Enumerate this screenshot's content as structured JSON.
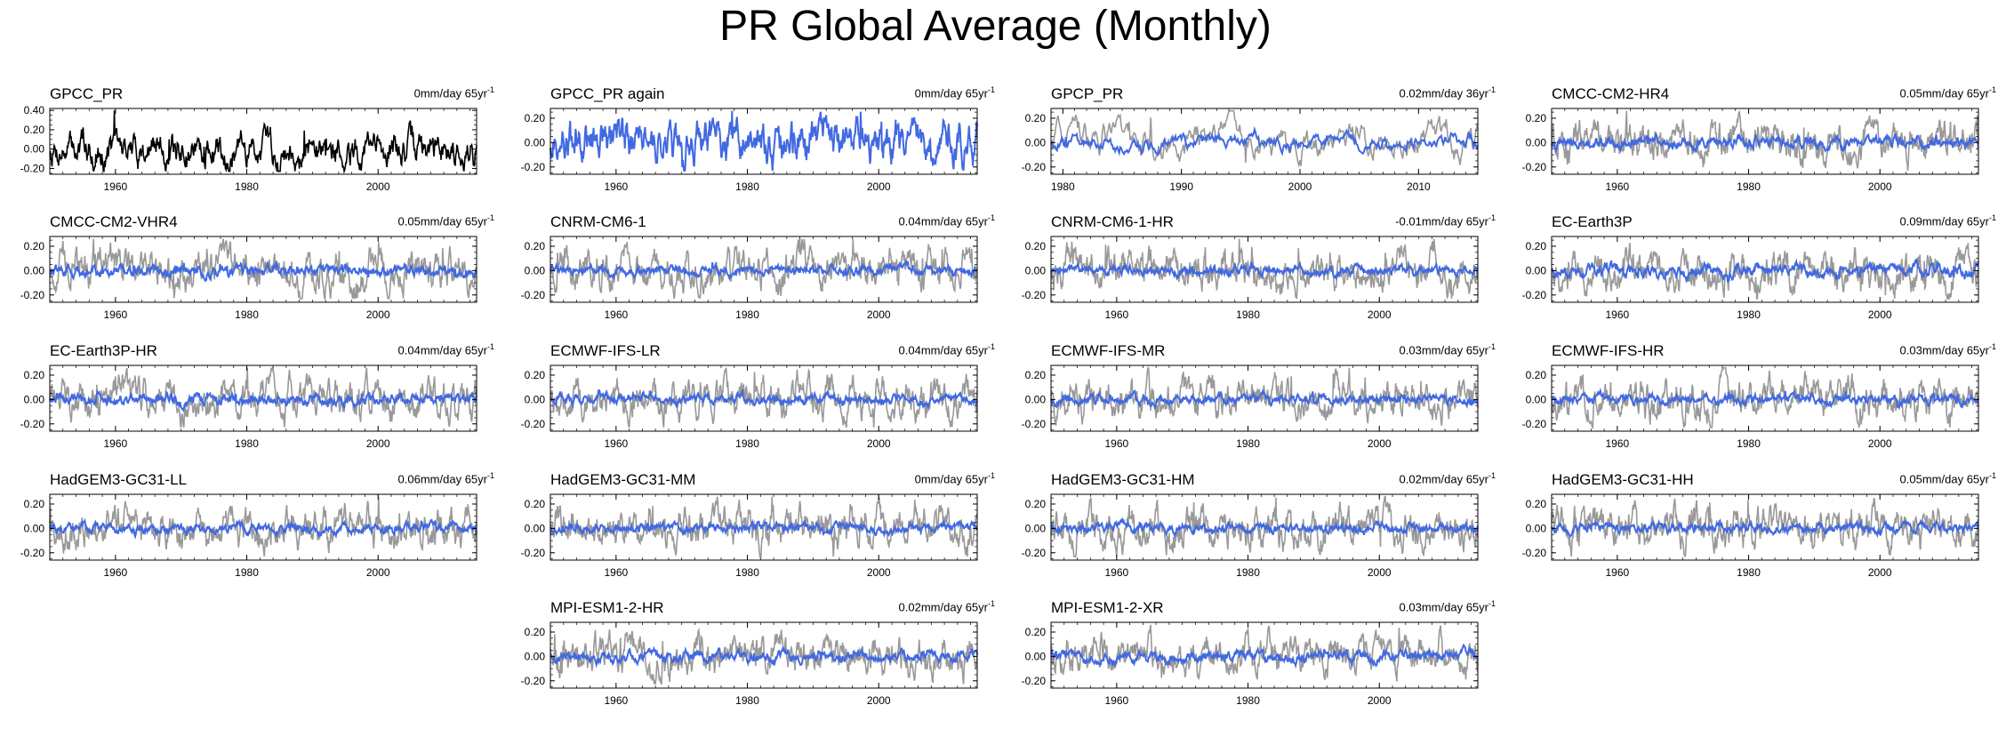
{
  "title": "PR Global Average (Monthly)",
  "colors": {
    "obs": "#000000",
    "model": "#4169e1",
    "reference": "#999999"
  },
  "chart_data": [
    {
      "type": "line",
      "title": "GPCC_PR",
      "trend": "0mm/day 65yr",
      "trend_sup": "-1",
      "x_range": [
        1950,
        2015
      ],
      "xticks": [
        1960,
        1980,
        2000
      ],
      "ylim": [
        -0.26,
        0.42
      ],
      "yticks": [
        "-0.20",
        "0.00",
        "0.20",
        "0.40"
      ],
      "series": [
        {
          "style": "obs",
          "amp": 0.22
        }
      ]
    },
    {
      "type": "line",
      "title": "GPCC_PR again",
      "trend": "0mm/day 65yr",
      "trend_sup": "-1",
      "x_range": [
        1950,
        2015
      ],
      "xticks": [
        1960,
        1980,
        2000
      ],
      "ylim": [
        -0.26,
        0.28
      ],
      "yticks": [
        "-0.20",
        "0.00",
        "0.20"
      ],
      "series": [
        {
          "style": "model",
          "amp": 0.22
        }
      ]
    },
    {
      "type": "line",
      "title": "GPCP_PR",
      "trend": "0.02mm/day 36yr",
      "trend_sup": "-1",
      "x_range": [
        1979,
        2015
      ],
      "xticks": [
        1980,
        1990,
        2000,
        2010
      ],
      "ylim": [
        -0.26,
        0.28
      ],
      "yticks": [
        "-0.20",
        "0.00",
        "0.20"
      ],
      "series": [
        {
          "style": "reference",
          "amp": 0.18
        },
        {
          "style": "model",
          "amp": 0.08
        }
      ]
    },
    {
      "type": "line",
      "title": "CMCC-CM2-HR4",
      "trend": "0.05mm/day 65yr",
      "trend_sup": "-1",
      "x_range": [
        1950,
        2015
      ],
      "xticks": [
        1960,
        1980,
        2000
      ],
      "ylim": [
        -0.26,
        0.28
      ],
      "yticks": [
        "-0.20",
        "0.00",
        "0.20"
      ],
      "series": [
        {
          "style": "reference",
          "amp": 0.2
        },
        {
          "style": "model",
          "amp": 0.06
        }
      ]
    },
    {
      "type": "line",
      "title": "CMCC-CM2-VHR4",
      "trend": "0.05mm/day 65yr",
      "trend_sup": "-1",
      "x_range": [
        1950,
        2015
      ],
      "xticks": [
        1960,
        1980,
        2000
      ],
      "ylim": [
        -0.26,
        0.28
      ],
      "yticks": [
        "-0.20",
        "0.00",
        "0.20"
      ],
      "series": [
        {
          "style": "reference",
          "amp": 0.2
        },
        {
          "style": "model",
          "amp": 0.06
        }
      ]
    },
    {
      "type": "line",
      "title": "CNRM-CM6-1",
      "trend": "0.04mm/day 65yr",
      "trend_sup": "-1",
      "x_range": [
        1950,
        2015
      ],
      "xticks": [
        1960,
        1980,
        2000
      ],
      "ylim": [
        -0.26,
        0.28
      ],
      "yticks": [
        "-0.20",
        "0.00",
        "0.20"
      ],
      "series": [
        {
          "style": "reference",
          "amp": 0.2
        },
        {
          "style": "model",
          "amp": 0.05
        }
      ]
    },
    {
      "type": "line",
      "title": "CNRM-CM6-1-HR",
      "trend": "-0.01mm/day 65yr",
      "trend_sup": "-1",
      "x_range": [
        1950,
        2015
      ],
      "xticks": [
        1960,
        1980,
        2000
      ],
      "ylim": [
        -0.26,
        0.28
      ],
      "yticks": [
        "-0.20",
        "0.00",
        "0.20"
      ],
      "series": [
        {
          "style": "reference",
          "amp": 0.2
        },
        {
          "style": "model",
          "amp": 0.05
        }
      ]
    },
    {
      "type": "line",
      "title": "EC-Earth3P",
      "trend": "0.09mm/day 65yr",
      "trend_sup": "-1",
      "x_range": [
        1950,
        2015
      ],
      "xticks": [
        1960,
        1980,
        2000
      ],
      "ylim": [
        -0.26,
        0.28
      ],
      "yticks": [
        "-0.20",
        "0.00",
        "0.20"
      ],
      "series": [
        {
          "style": "reference",
          "amp": 0.2
        },
        {
          "style": "model",
          "amp": 0.07
        }
      ]
    },
    {
      "type": "line",
      "title": "EC-Earth3P-HR",
      "trend": "0.04mm/day 65yr",
      "trend_sup": "-1",
      "x_range": [
        1950,
        2015
      ],
      "xticks": [
        1960,
        1980,
        2000
      ],
      "ylim": [
        -0.26,
        0.28
      ],
      "yticks": [
        "-0.20",
        "0.00",
        "0.20"
      ],
      "series": [
        {
          "style": "reference",
          "amp": 0.2
        },
        {
          "style": "model",
          "amp": 0.06
        }
      ]
    },
    {
      "type": "line",
      "title": "ECMWF-IFS-LR",
      "trend": "0.04mm/day 65yr",
      "trend_sup": "-1",
      "x_range": [
        1950,
        2015
      ],
      "xticks": [
        1960,
        1980,
        2000
      ],
      "ylim": [
        -0.26,
        0.28
      ],
      "yticks": [
        "-0.20",
        "0.00",
        "0.20"
      ],
      "series": [
        {
          "style": "reference",
          "amp": 0.2
        },
        {
          "style": "model",
          "amp": 0.05
        }
      ]
    },
    {
      "type": "line",
      "title": "ECMWF-IFS-MR",
      "trend": "0.03mm/day 65yr",
      "trend_sup": "-1",
      "x_range": [
        1950,
        2015
      ],
      "xticks": [
        1960,
        1980,
        2000
      ],
      "ylim": [
        -0.26,
        0.28
      ],
      "yticks": [
        "-0.20",
        "0.00",
        "0.20"
      ],
      "series": [
        {
          "style": "reference",
          "amp": 0.2
        },
        {
          "style": "model",
          "amp": 0.05
        }
      ]
    },
    {
      "type": "line",
      "title": "ECMWF-IFS-HR",
      "trend": "0.03mm/day 65yr",
      "trend_sup": "-1",
      "x_range": [
        1950,
        2015
      ],
      "xticks": [
        1960,
        1980,
        2000
      ],
      "ylim": [
        -0.26,
        0.28
      ],
      "yticks": [
        "-0.20",
        "0.00",
        "0.20"
      ],
      "series": [
        {
          "style": "reference",
          "amp": 0.2
        },
        {
          "style": "model",
          "amp": 0.05
        }
      ]
    },
    {
      "type": "line",
      "title": "HadGEM3-GC31-LL",
      "trend": "0.06mm/day 65yr",
      "trend_sup": "-1",
      "x_range": [
        1950,
        2015
      ],
      "xticks": [
        1960,
        1980,
        2000
      ],
      "ylim": [
        -0.26,
        0.28
      ],
      "yticks": [
        "-0.20",
        "0.00",
        "0.20"
      ],
      "series": [
        {
          "style": "reference",
          "amp": 0.2
        },
        {
          "style": "model",
          "amp": 0.05
        }
      ]
    },
    {
      "type": "line",
      "title": "HadGEM3-GC31-MM",
      "trend": "0mm/day 65yr",
      "trend_sup": "-1",
      "x_range": [
        1950,
        2015
      ],
      "xticks": [
        1960,
        1980,
        2000
      ],
      "ylim": [
        -0.26,
        0.28
      ],
      "yticks": [
        "-0.20",
        "0.00",
        "0.20"
      ],
      "series": [
        {
          "style": "reference",
          "amp": 0.2
        },
        {
          "style": "model",
          "amp": 0.05
        }
      ]
    },
    {
      "type": "line",
      "title": "HadGEM3-GC31-HM",
      "trend": "0.02mm/day 65yr",
      "trend_sup": "-1",
      "x_range": [
        1950,
        2015
      ],
      "xticks": [
        1960,
        1980,
        2000
      ],
      "ylim": [
        -0.26,
        0.28
      ],
      "yticks": [
        "-0.20",
        "0.00",
        "0.20"
      ],
      "series": [
        {
          "style": "reference",
          "amp": 0.2
        },
        {
          "style": "model",
          "amp": 0.05
        }
      ]
    },
    {
      "type": "line",
      "title": "HadGEM3-GC31-HH",
      "trend": "0.05mm/day 65yr",
      "trend_sup": "-1",
      "x_range": [
        1950,
        2015
      ],
      "xticks": [
        1960,
        1980,
        2000
      ],
      "ylim": [
        -0.26,
        0.28
      ],
      "yticks": [
        "-0.20",
        "0.00",
        "0.20"
      ],
      "series": [
        {
          "style": "reference",
          "amp": 0.2
        },
        {
          "style": "model",
          "amp": 0.05
        }
      ]
    },
    {
      "type": "line",
      "title": "MPI-ESM1-2-HR",
      "trend": "0.02mm/day 65yr",
      "trend_sup": "-1",
      "x_range": [
        1950,
        2015
      ],
      "xticks": [
        1960,
        1980,
        2000
      ],
      "ylim": [
        -0.26,
        0.28
      ],
      "yticks": [
        "-0.20",
        "0.00",
        "0.20"
      ],
      "series": [
        {
          "style": "reference",
          "amp": 0.2
        },
        {
          "style": "model",
          "amp": 0.06
        }
      ]
    },
    {
      "type": "line",
      "title": "MPI-ESM1-2-XR",
      "trend": "0.03mm/day 65yr",
      "trend_sup": "-1",
      "x_range": [
        1950,
        2015
      ],
      "xticks": [
        1960,
        1980,
        2000
      ],
      "ylim": [
        -0.26,
        0.28
      ],
      "yticks": [
        "-0.20",
        "0.00",
        "0.20"
      ],
      "series": [
        {
          "style": "reference",
          "amp": 0.2
        },
        {
          "style": "model",
          "amp": 0.06
        }
      ]
    }
  ]
}
